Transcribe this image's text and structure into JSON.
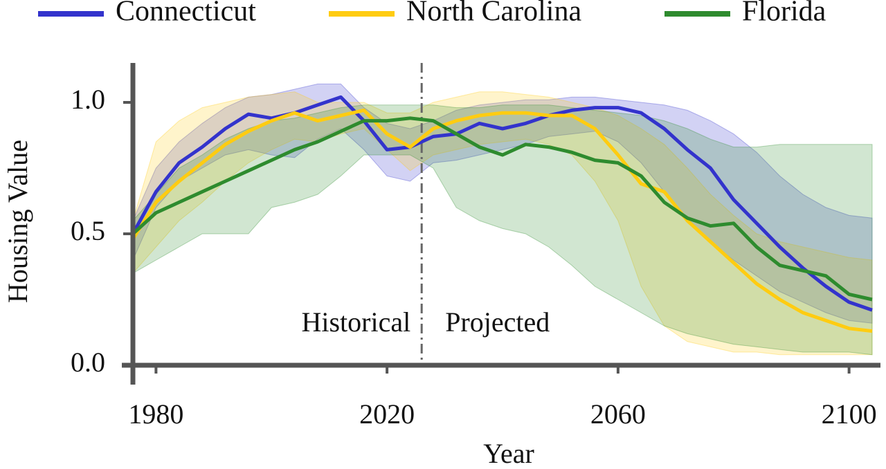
{
  "chart_data": {
    "type": "line",
    "x_label": "Year",
    "y_label": "Housing Value",
    "annotations": [
      "Historical",
      "Projected"
    ],
    "divider": 2026,
    "x": [
      1976,
      1980,
      1984,
      1988,
      1992,
      1996,
      2000,
      2004,
      2008,
      2012,
      2016,
      2020,
      2024,
      2028,
      2032,
      2036,
      2040,
      2044,
      2048,
      2052,
      2056,
      2060,
      2064,
      2068,
      2072,
      2076,
      2080,
      2084,
      2088,
      2092,
      2096,
      2100,
      2104
    ],
    "xlim": [
      1976,
      2104
    ],
    "xticks": [
      1980,
      2020,
      2060,
      2100
    ],
    "ylim": [
      0,
      1.15
    ],
    "yticks": [
      {
        "value": 0,
        "label": "0.0"
      },
      {
        "value": 0.5,
        "label": "0.5"
      },
      {
        "value": 1,
        "label": "1.0"
      }
    ],
    "series": [
      {
        "name": "Connecticut",
        "color": "#3333cc",
        "values": [
          0.5,
          0.66,
          0.77,
          0.83,
          0.9,
          0.955,
          0.94,
          0.96,
          0.99,
          1.02,
          0.93,
          0.82,
          0.83,
          0.87,
          0.88,
          0.92,
          0.9,
          0.92,
          0.95,
          0.97,
          0.98,
          0.98,
          0.96,
          0.9,
          0.82,
          0.75,
          0.63,
          0.54,
          0.45,
          0.37,
          0.3,
          0.24,
          0.21
        ],
        "lower": [
          0.4,
          0.6,
          0.7,
          0.75,
          0.8,
          0.82,
          0.8,
          0.79,
          0.86,
          0.9,
          0.82,
          0.72,
          0.7,
          0.77,
          0.78,
          0.8,
          0.82,
          0.84,
          0.87,
          0.88,
          0.89,
          0.85,
          0.77,
          0.66,
          0.56,
          0.47,
          0.4,
          0.34,
          0.28,
          0.24,
          0.2,
          0.17,
          0.16
        ],
        "upper": [
          0.55,
          0.75,
          0.85,
          0.92,
          0.98,
          1.02,
          1.03,
          1.05,
          1.07,
          1.07,
          0.98,
          0.92,
          0.9,
          0.93,
          0.97,
          0.99,
          1.0,
          1.01,
          1.01,
          1.02,
          1.02,
          1.01,
          1.0,
          0.99,
          0.97,
          0.93,
          0.88,
          0.81,
          0.72,
          0.65,
          0.6,
          0.57,
          0.56
        ]
      },
      {
        "name": "North Carolina",
        "color": "#ffcc11",
        "values": [
          0.48,
          0.62,
          0.7,
          0.77,
          0.84,
          0.89,
          0.93,
          0.96,
          0.93,
          0.95,
          0.97,
          0.88,
          0.83,
          0.9,
          0.93,
          0.95,
          0.96,
          0.96,
          0.95,
          0.95,
          0.9,
          0.8,
          0.69,
          0.66,
          0.55,
          0.47,
          0.39,
          0.31,
          0.25,
          0.2,
          0.17,
          0.14,
          0.13
        ],
        "lower": [
          0.35,
          0.45,
          0.55,
          0.62,
          0.7,
          0.77,
          0.82,
          0.86,
          0.85,
          0.88,
          0.9,
          0.82,
          0.74,
          0.8,
          0.82,
          0.84,
          0.85,
          0.86,
          0.84,
          0.8,
          0.7,
          0.55,
          0.3,
          0.15,
          0.09,
          0.07,
          0.05,
          0.05,
          0.04,
          0.04,
          0.04,
          0.04,
          0.04
        ],
        "upper": [
          0.55,
          0.85,
          0.93,
          0.98,
          1.0,
          1.02,
          1.03,
          1.04,
          1.0,
          1.0,
          1.0,
          0.96,
          0.96,
          1.0,
          1.02,
          1.04,
          1.04,
          1.03,
          1.02,
          1.0,
          0.98,
          0.95,
          0.9,
          0.84,
          0.75,
          0.65,
          0.57,
          0.5,
          0.47,
          0.45,
          0.43,
          0.41,
          0.4
        ]
      },
      {
        "name": "Florida",
        "color": "#2e8b2e",
        "values": [
          0.5,
          0.58,
          0.62,
          0.66,
          0.7,
          0.74,
          0.78,
          0.82,
          0.85,
          0.89,
          0.93,
          0.93,
          0.94,
          0.93,
          0.88,
          0.83,
          0.8,
          0.84,
          0.83,
          0.81,
          0.78,
          0.77,
          0.72,
          0.62,
          0.56,
          0.53,
          0.54,
          0.45,
          0.38,
          0.36,
          0.34,
          0.27,
          0.25
        ],
        "lower": [
          0.35,
          0.4,
          0.45,
          0.5,
          0.5,
          0.5,
          0.6,
          0.62,
          0.65,
          0.72,
          0.8,
          0.8,
          0.8,
          0.75,
          0.6,
          0.55,
          0.52,
          0.5,
          0.45,
          0.38,
          0.3,
          0.25,
          0.2,
          0.15,
          0.12,
          0.1,
          0.08,
          0.07,
          0.06,
          0.05,
          0.05,
          0.05,
          0.04
        ],
        "upper": [
          0.55,
          0.65,
          0.75,
          0.8,
          0.86,
          0.9,
          0.93,
          0.94,
          0.96,
          0.98,
          0.99,
          0.99,
          0.99,
          0.99,
          0.98,
          0.98,
          0.99,
          0.99,
          0.99,
          0.98,
          0.97,
          0.96,
          0.95,
          0.93,
          0.9,
          0.86,
          0.83,
          0.83,
          0.84,
          0.84,
          0.84,
          0.84,
          0.84
        ]
      }
    ]
  }
}
